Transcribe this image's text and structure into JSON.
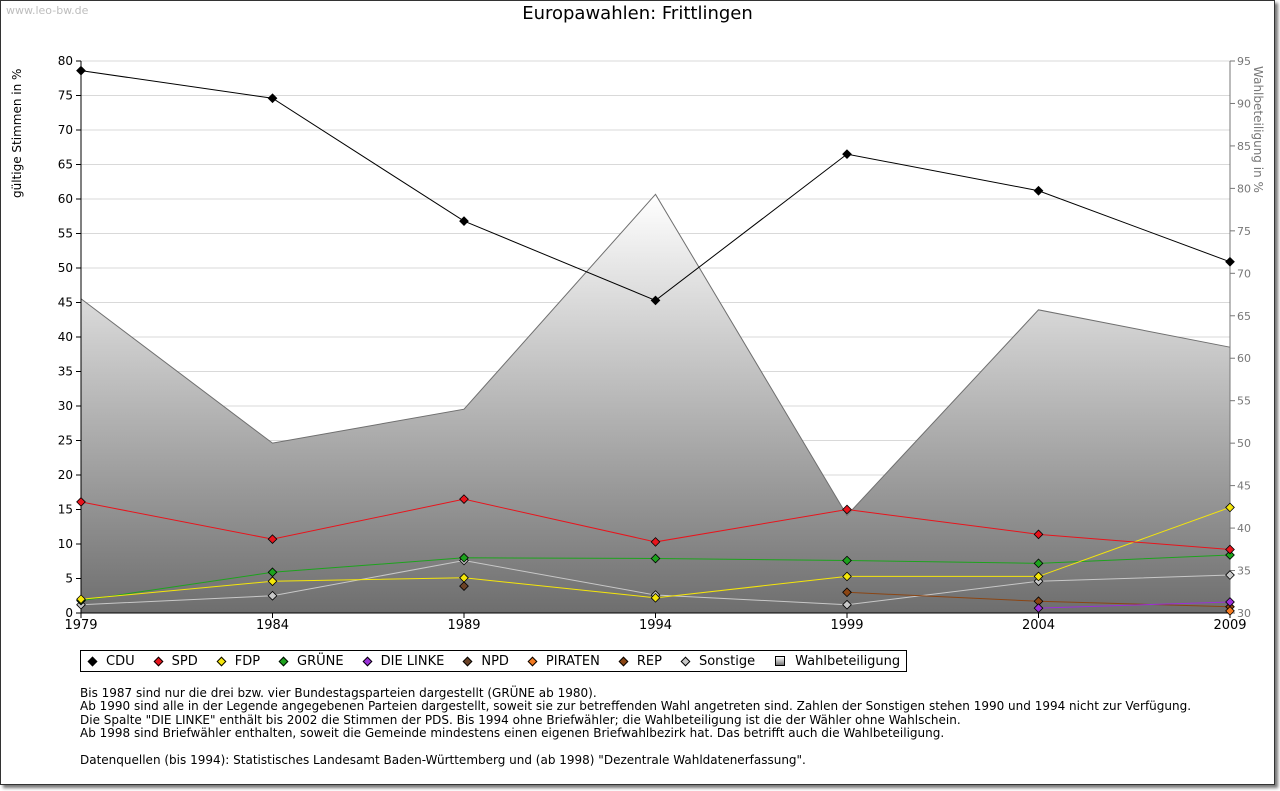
{
  "watermark": "www.leo-bw.de",
  "chart_data": {
    "type": "line",
    "title": "Europawahlen: Frittlingen",
    "ylabel": "gültige Stimmen in %",
    "y2label": "Wahlbeteiligung in %",
    "x": [
      "1979",
      "1984",
      "1989",
      "1994",
      "1999",
      "2004",
      "2009"
    ],
    "ylim": [
      0,
      80
    ],
    "yticks": [
      0,
      5,
      10,
      15,
      20,
      25,
      30,
      35,
      40,
      45,
      50,
      55,
      60,
      65,
      70,
      75,
      80
    ],
    "y2lim": [
      30,
      95
    ],
    "y2ticks": [
      30,
      35,
      40,
      45,
      50,
      55,
      60,
      65,
      70,
      75,
      80,
      85,
      90,
      95
    ],
    "grid": true,
    "legend_position": "bottom",
    "series": [
      {
        "name": "CDU",
        "color": "#000000",
        "values": [
          78.6,
          74.6,
          56.8,
          45.3,
          66.5,
          61.2,
          50.9
        ]
      },
      {
        "name": "SPD",
        "color": "#e8141c",
        "values": [
          16.1,
          10.7,
          16.5,
          10.3,
          15.0,
          11.4,
          9.2
        ]
      },
      {
        "name": "FDP",
        "color": "#f5e60a",
        "values": [
          2.0,
          4.6,
          5.1,
          2.2,
          5.3,
          5.3,
          15.3
        ]
      },
      {
        "name": "GRÜNE",
        "color": "#1da31d",
        "values": [
          1.8,
          5.9,
          8.0,
          7.9,
          7.6,
          7.2,
          8.4
        ]
      },
      {
        "name": "DIE LINKE",
        "color": "#9b30d9",
        "values": [
          null,
          null,
          null,
          null,
          null,
          0.7,
          1.6
        ]
      },
      {
        "name": "NPD",
        "color": "#6b4226",
        "values": [
          null,
          null,
          3.9,
          null,
          null,
          null,
          null
        ]
      },
      {
        "name": "PIRATEN",
        "color": "#f47a20",
        "values": [
          null,
          null,
          null,
          null,
          null,
          null,
          0.3
        ]
      },
      {
        "name": "REP",
        "color": "#8b4513",
        "values": [
          null,
          null,
          null,
          null,
          3.0,
          1.7,
          0.9
        ]
      },
      {
        "name": "Sonstige",
        "color": "#c8c8c8",
        "values": [
          1.2,
          2.5,
          7.6,
          2.6,
          1.2,
          4.6,
          5.5
        ]
      }
    ],
    "turnout": {
      "name": "Wahlbeteiligung",
      "values": [
        67.0,
        50.0,
        54.0,
        79.3,
        41.5,
        65.7,
        61.3
      ]
    }
  },
  "notes": [
    "Bis 1987 sind nur die drei bzw. vier Bundestagsparteien dargestellt (GRÜNE ab 1980).",
    "Ab 1990 sind alle in der Legende angegebenen Parteien dargestellt, soweit sie zur betreffenden Wahl angetreten sind. Zahlen der Sonstigen stehen 1990 und 1994 nicht zur Verfügung.",
    "Die Spalte \"DIE LINKE\" enthält bis 2002 die Stimmen der PDS. Bis 1994 ohne Briefwähler; die Wahlbeteiligung ist die der Wähler ohne Wahlschein.",
    "Ab 1998 sind Briefwähler enthalten, soweit die Gemeinde mindestens einen eigenen Briefwahlbezirk hat. Das betrifft auch die Wahlbeteiligung."
  ],
  "source": "Datenquellen (bis 1994): Statistisches Landesamt Baden-Württemberg und (ab 1998) \"Dezentrale Wahldatenerfassung\"."
}
